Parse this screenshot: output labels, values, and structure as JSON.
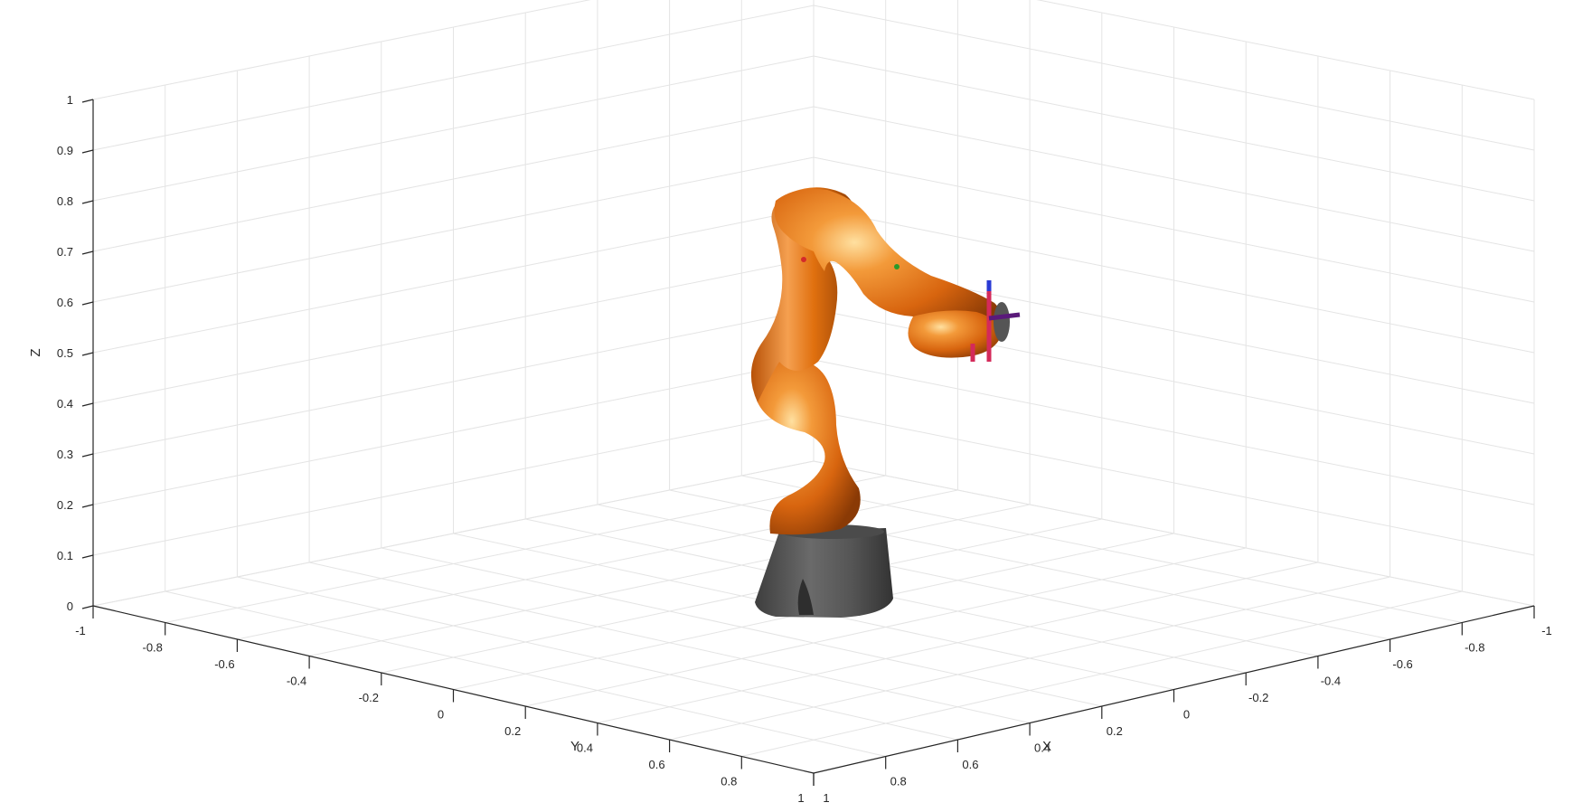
{
  "chart_data": {
    "type": "3d-plot",
    "xlabel": "X",
    "ylabel": "Y",
    "zlabel": "Z",
    "xlim": [
      -1,
      1
    ],
    "ylim": [
      -1,
      1
    ],
    "zlim": [
      0,
      1
    ],
    "x_ticks": [
      "1",
      "0.8",
      "0.6",
      "0.4",
      "0.2",
      "0",
      "-0.2",
      "-0.4",
      "-0.6",
      "-0.8",
      "-1"
    ],
    "y_ticks": [
      "-1",
      "-0.8",
      "-0.6",
      "-0.4",
      "-0.2",
      "0",
      "0.2",
      "0.4",
      "0.6",
      "0.8",
      "1"
    ],
    "z_ticks": [
      "0",
      "0.1",
      "0.2",
      "0.3",
      "0.4",
      "0.5",
      "0.6",
      "0.7",
      "0.8",
      "0.9",
      "1"
    ],
    "grid": true,
    "object": "robot-arm",
    "colors": {
      "robot_link": "#e8751a",
      "robot_base": "#5a5a5a",
      "frame_x": "#d42a5a",
      "frame_y": "#2a9a2a",
      "frame_z": "#2a3ad4",
      "grid": "#e4e4e4",
      "axis": "#262626"
    }
  }
}
